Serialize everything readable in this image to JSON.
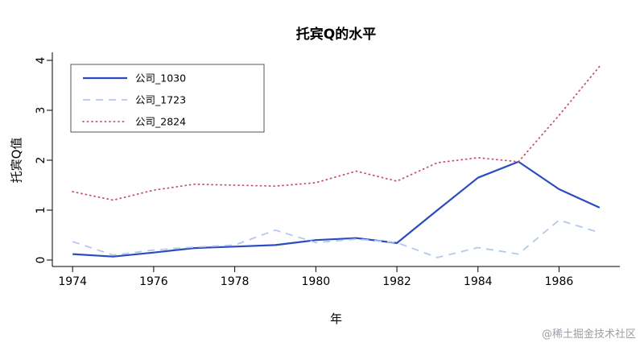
{
  "figure": {
    "title": "托宾Q的水平",
    "xlabel": "年",
    "ylabel": "托宾Q值"
  },
  "watermark": {
    "text": "@稀土掘金技术社区"
  },
  "chart_data": {
    "type": "line",
    "title": "托宾Q的水平",
    "xlabel": "年",
    "ylabel": "托宾Q值",
    "x": [
      1974,
      1975,
      1976,
      1977,
      1978,
      1979,
      1980,
      1981,
      1982,
      1983,
      1984,
      1985,
      1986,
      1987
    ],
    "x_ticks": [
      1974,
      1976,
      1978,
      1980,
      1982,
      1984,
      1986
    ],
    "y_ticks": [
      0,
      1,
      2,
      3,
      4
    ],
    "xlim": [
      1973.5,
      1987.5
    ],
    "ylim": [
      0,
      4
    ],
    "grid": false,
    "legend_position": "top-left",
    "axis_color": "#000000",
    "series": [
      {
        "name": "公司_1030",
        "color": "#2a4cc0",
        "style": "solid",
        "values": [
          0.12,
          0.07,
          0.15,
          0.24,
          0.27,
          0.3,
          0.4,
          0.44,
          0.34,
          1.0,
          1.65,
          1.97,
          1.42,
          1.05
        ]
      },
      {
        "name": "公司_1723",
        "color": "#b4c9ec",
        "style": "dashed",
        "values": [
          0.37,
          0.1,
          0.2,
          0.26,
          0.3,
          0.6,
          0.35,
          0.42,
          0.35,
          0.05,
          0.25,
          0.12,
          0.8,
          0.55
        ]
      },
      {
        "name": "公司_2824",
        "color": "#c5516b",
        "style": "dotted",
        "values": [
          1.37,
          1.2,
          1.4,
          1.52,
          1.5,
          1.48,
          1.55,
          1.78,
          1.58,
          1.95,
          2.05,
          1.97,
          2.9,
          3.88
        ]
      }
    ]
  }
}
